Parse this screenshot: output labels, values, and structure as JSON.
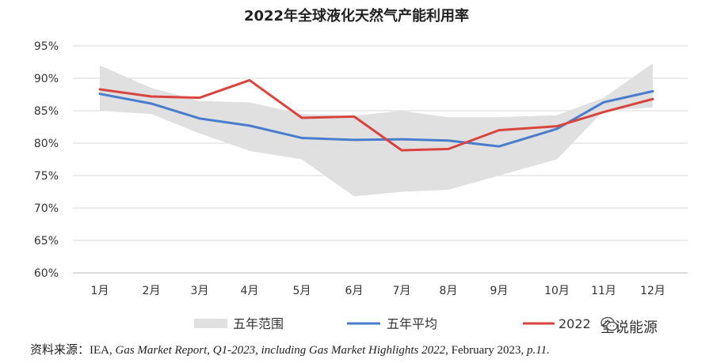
{
  "chart_data": {
    "type": "line",
    "title": "2022年全球液化天然气产能利用率",
    "categories": [
      "1月",
      "2月",
      "3月",
      "4月",
      "5月",
      "6月",
      "7月",
      "8月",
      "9月",
      "10月",
      "11月",
      "12月"
    ],
    "ylim": [
      60,
      95
    ],
    "yticks": [
      "60%",
      "65%",
      "70%",
      "75%",
      "80%",
      "85%",
      "90%",
      "95%"
    ],
    "ytick_values": [
      60,
      65,
      70,
      75,
      80,
      85,
      90,
      95
    ],
    "grid": true,
    "legend_position": "bottom",
    "range": {
      "name": "五年范围",
      "color": "#e0e0e0",
      "upper": [
        92.0,
        88.5,
        86.5,
        86.3,
        84.5,
        84.2,
        85.0,
        84.0,
        84.0,
        84.3,
        87.0,
        92.3
      ],
      "lower": [
        85.0,
        84.5,
        81.5,
        78.8,
        77.5,
        71.8,
        72.5,
        72.8,
        75.0,
        77.5,
        85.0,
        85.5
      ]
    },
    "series": [
      {
        "name": "五年平均",
        "color": "#4a7cce",
        "values": [
          87.6,
          86.1,
          83.8,
          82.7,
          80.8,
          80.5,
          80.6,
          80.4,
          79.5,
          82.2,
          86.3,
          88.0
        ]
      },
      {
        "name": "2022",
        "color": "#d9443e",
        "values": [
          88.3,
          87.2,
          87.0,
          89.7,
          83.9,
          84.1,
          78.9,
          79.1,
          82.0,
          82.6,
          84.8,
          86.8
        ]
      }
    ]
  },
  "source_prefix": "资料来源：IEA, ",
  "source_italic1": "Gas Market Report, Q1-2023, including Gas Market Highlights 2022,",
  "source_mid": " February 2023, ",
  "source_italic2": "p.11.",
  "watermark_text": "全说能源"
}
